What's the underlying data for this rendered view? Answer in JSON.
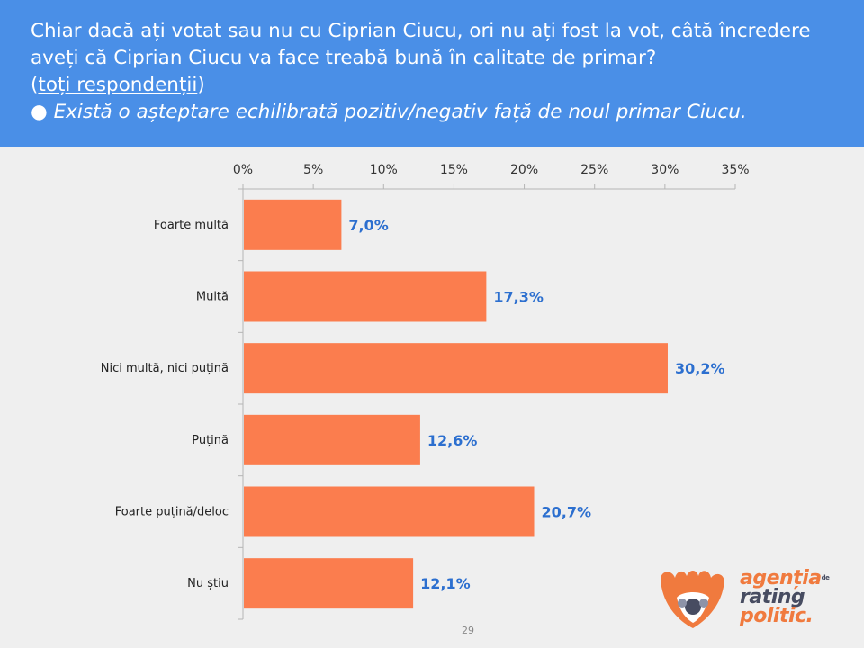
{
  "header": {
    "question": "Chiar dacă ați votat sau nu cu Ciprian Ciucu, ori nu ați fost la vot, câtă încredere aveți că Ciprian Ciucu va face treabă bună în calitate de primar?",
    "respondents_open": "(",
    "respondents": "toți respondenții",
    "respondents_close": ")",
    "note": "● Există o așteptare echilibrată pozitiv/negativ față de noul primar Ciucu."
  },
  "chart_data": {
    "type": "bar",
    "orientation": "horizontal",
    "categories": [
      "Foarte multă",
      "Multă",
      "Nici multă, nici puțină",
      "Puțină",
      "Foarte puțină/deloc",
      "Nu știu"
    ],
    "values": [
      7.0,
      17.3,
      30.2,
      12.6,
      20.7,
      12.1
    ],
    "value_labels": [
      "7,0%",
      "17,3%",
      "30,2%",
      "12,6%",
      "20,7%",
      "12,1%"
    ],
    "xlim": [
      0,
      35
    ],
    "xticks": [
      0,
      5,
      10,
      15,
      20,
      25,
      30,
      35
    ],
    "xtick_labels": [
      "0%",
      "5%",
      "10%",
      "15%",
      "20%",
      "25%",
      "30%",
      "35%"
    ],
    "axis_position": "top",
    "grid": false,
    "bar_color": "#fb7d4e",
    "label_color": "#2c6fcf"
  },
  "page_number": "29",
  "logo": {
    "line1": "agenția",
    "de": "de",
    "line2": "rating",
    "line3": "politic."
  }
}
